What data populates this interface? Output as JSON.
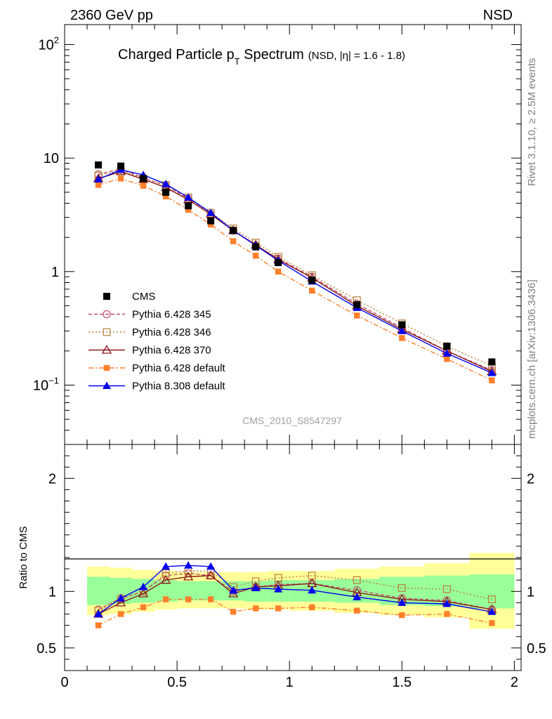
{
  "header": {
    "left": "2360 GeV pp",
    "right": "NSD",
    "side_top": "Rivet 3.1.10, ≥ 2.5M events",
    "side_bottom": "mcplots.cern.ch [arXiv:1306.3436]"
  },
  "chart_data": {
    "type": "scatter",
    "title": "Charged Particle p",
    "title_sub": "T",
    "title_tail": " Spectrum",
    "title_small": "(NSD, |η| = 1.6 - 1.8)",
    "watermark": "CMS_2010_S8547297",
    "ylabel_ratio": "Ratio to CMS",
    "x_ticks": [
      "0",
      "0.5",
      "1",
      "1.5",
      "2"
    ],
    "x_tick_values": [
      0,
      0.5,
      1,
      1.5,
      2
    ],
    "main": {
      "yscale": "log",
      "ylim": [
        0.03,
        150
      ],
      "y_ticks": [
        {
          "value": 100,
          "base": "10",
          "exp": "2"
        },
        {
          "value": 10,
          "base": "10",
          "exp": ""
        },
        {
          "value": 1,
          "base": "1",
          "exp": ""
        },
        {
          "value": 0.1,
          "base": "10",
          "exp": "−1"
        }
      ]
    },
    "ratio": {
      "ylim": [
        0.3,
        2.3
      ],
      "y_ticks": [
        "0.5",
        "1",
        "2"
      ],
      "y_tick_values": [
        0.5,
        1,
        2
      ]
    },
    "x": [
      0.15,
      0.25,
      0.35,
      0.45,
      0.55,
      0.65,
      0.75,
      0.85,
      0.95,
      1.1,
      1.3,
      1.5,
      1.7,
      1.9
    ],
    "bin_edges": [
      0.1,
      0.2,
      0.3,
      0.4,
      0.5,
      0.6,
      0.7,
      0.8,
      0.9,
      1.0,
      1.2,
      1.4,
      1.6,
      1.8,
      2.0
    ],
    "band_yellow": [
      [
        0.79,
        1.22
      ],
      [
        0.8,
        1.21
      ],
      [
        0.82,
        1.19
      ],
      [
        0.84,
        1.18
      ],
      [
        0.85,
        1.17
      ],
      [
        0.85,
        1.17
      ],
      [
        0.85,
        1.17
      ],
      [
        0.84,
        1.17
      ],
      [
        0.84,
        1.18
      ],
      [
        0.83,
        1.18
      ],
      [
        0.81,
        1.2
      ],
      [
        0.79,
        1.22
      ],
      [
        0.77,
        1.25
      ],
      [
        0.67,
        1.34
      ]
    ],
    "band_green": [
      [
        0.88,
        1.13
      ],
      [
        0.89,
        1.12
      ],
      [
        0.9,
        1.11
      ],
      [
        0.91,
        1.1
      ],
      [
        0.92,
        1.09
      ],
      [
        0.92,
        1.09
      ],
      [
        0.92,
        1.09
      ],
      [
        0.91,
        1.09
      ],
      [
        0.91,
        1.1
      ],
      [
        0.91,
        1.1
      ],
      [
        0.9,
        1.11
      ],
      [
        0.88,
        1.13
      ],
      [
        0.87,
        1.14
      ],
      [
        0.85,
        1.15
      ]
    ],
    "data": {
      "name": "CMS",
      "color": "#000000",
      "values": [
        8.7,
        8.5,
        6.6,
        5.0,
        3.8,
        2.8,
        2.3,
        1.65,
        1.2,
        0.84,
        0.51,
        0.34,
        0.22,
        0.16
      ]
    },
    "series": [
      {
        "name": "Pythia 6.428 345",
        "color": "#c0506e",
        "marker": "circle-open",
        "dash": "5,3",
        "values": [
          7.2,
          8.0,
          6.7,
          5.7,
          4.4,
          3.2,
          2.3,
          1.7,
          1.3,
          0.9,
          0.52,
          0.32,
          0.2,
          0.135
        ],
        "ratio": [
          0.84,
          0.94,
          1.0,
          1.14,
          1.16,
          1.14,
          1.0,
          1.04,
          1.06,
          1.07,
          1.01,
          0.94,
          0.92,
          0.84
        ]
      },
      {
        "name": "Pythia 6.428 346",
        "color": "#b8803a",
        "marker": "square-open",
        "dash": "2,3",
        "values": [
          7.0,
          7.8,
          6.6,
          5.8,
          4.5,
          3.3,
          2.4,
          1.8,
          1.35,
          0.93,
          0.56,
          0.35,
          0.22,
          0.148
        ],
        "ratio": [
          0.83,
          0.93,
          1.0,
          1.16,
          1.18,
          1.18,
          1.04,
          1.09,
          1.12,
          1.14,
          1.1,
          1.03,
          1.02,
          0.93
        ]
      },
      {
        "name": "Pythia 6.428 370",
        "color": "#8b1a1a",
        "marker": "triangle-open",
        "dash": "",
        "values": [
          6.6,
          7.6,
          6.5,
          5.5,
          4.3,
          3.2,
          2.3,
          1.72,
          1.28,
          0.88,
          0.5,
          0.31,
          0.2,
          0.132
        ],
        "ratio": [
          0.8,
          0.9,
          0.98,
          1.1,
          1.13,
          1.14,
          0.98,
          1.04,
          1.05,
          1.07,
          0.99,
          0.93,
          0.91,
          0.84
        ]
      },
      {
        "name": "Pythia 6.428 default",
        "color": "#ff7f2a",
        "marker": "square-filled",
        "dash": "7,3,2,3",
        "values": [
          5.8,
          6.6,
          5.7,
          4.6,
          3.5,
          2.6,
          1.85,
          1.38,
          1.0,
          0.68,
          0.41,
          0.26,
          0.17,
          0.11
        ],
        "ratio": [
          0.7,
          0.8,
          0.86,
          0.93,
          0.93,
          0.93,
          0.82,
          0.85,
          0.85,
          0.86,
          0.83,
          0.79,
          0.8,
          0.72
        ]
      },
      {
        "name": "Pythia 8.308 default",
        "color": "#0000ee",
        "marker": "triangle-filled",
        "dash": "",
        "values": [
          6.5,
          7.9,
          7.1,
          5.9,
          4.5,
          3.3,
          2.3,
          1.7,
          1.25,
          0.82,
          0.48,
          0.3,
          0.19,
          0.128
        ],
        "ratio": [
          0.8,
          0.94,
          1.04,
          1.22,
          1.23,
          1.22,
          1.01,
          1.03,
          1.02,
          1.01,
          0.95,
          0.9,
          0.89,
          0.82
        ]
      }
    ]
  }
}
